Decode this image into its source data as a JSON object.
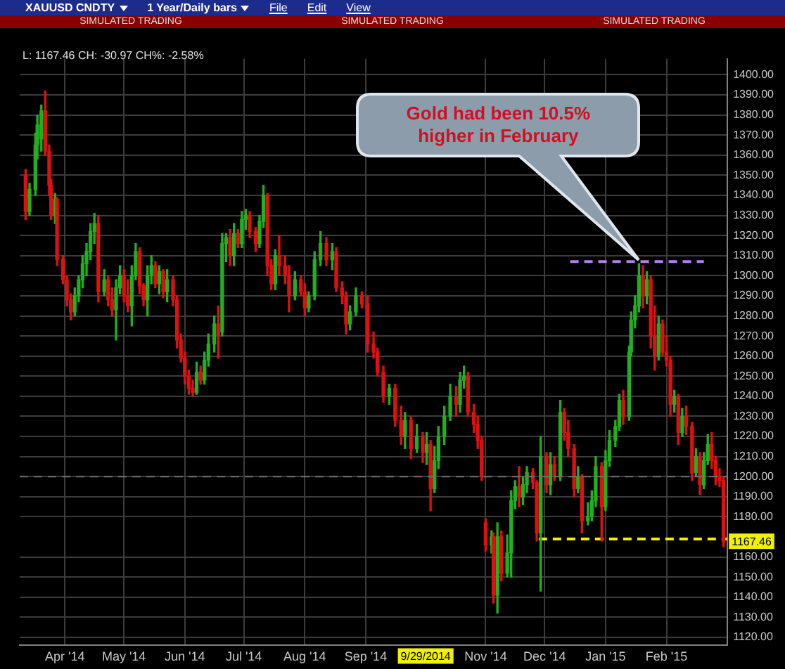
{
  "chart_data": {
    "type": "candlestick",
    "title": "XAUUSD CNDTY",
    "subtitle": "1 Year/Daily bars",
    "annotations": [
      "File",
      "Edit",
      "View",
      "SIMULATED TRADING",
      "SIMULATED TRADING",
      "SIMULATED TRADING",
      "L: 1167.46 CH: -30.97 CH%: -2.58%",
      "9/29/2014",
      "1167.46",
      "Gold had been 10.5% higher in February"
    ],
    "x": [
      "2014-03-12",
      "2014-03-14",
      "2014-03-17",
      "2014-03-18",
      "2014-03-20",
      "2014-03-22",
      "2014-03-24",
      "2014-03-25",
      "2014-03-27",
      "2014-03-28",
      "2014-03-31",
      "2014-04-02",
      "2014-04-04",
      "2014-04-06",
      "2014-04-08",
      "2014-04-10",
      "2014-04-12",
      "2014-04-14",
      "2014-04-16",
      "2014-04-18",
      "2014-04-21",
      "2014-04-23",
      "2014-04-25",
      "2014-04-27",
      "2014-04-29",
      "2014-05-01",
      "2014-05-03",
      "2014-05-05",
      "2014-05-07",
      "2014-05-09",
      "2014-05-11",
      "2014-05-13",
      "2014-05-15",
      "2014-05-17",
      "2014-05-19",
      "2014-05-21",
      "2014-05-23",
      "2014-05-26",
      "2014-05-28",
      "2014-05-30",
      "2014-06-01",
      "2014-06-03",
      "2014-06-05",
      "2014-06-07",
      "2014-06-09",
      "2014-06-11",
      "2014-06-13",
      "2014-06-16",
      "2014-06-18",
      "2014-06-20",
      "2014-06-22",
      "2014-06-24",
      "2014-06-26",
      "2014-06-28",
      "2014-06-30",
      "2014-07-02",
      "2014-07-04",
      "2014-07-07",
      "2014-07-09",
      "2014-07-11",
      "2014-07-13",
      "2014-07-15",
      "2014-07-17",
      "2014-07-19",
      "2014-07-22",
      "2014-07-24",
      "2014-07-27",
      "2014-07-30",
      "2014-08-01",
      "2014-08-03",
      "2014-08-06",
      "2014-08-09",
      "2014-08-12",
      "2014-08-15",
      "2014-08-17",
      "2014-08-20",
      "2014-08-22",
      "2014-08-24",
      "2014-08-27",
      "2014-08-30",
      "2014-09-02",
      "2014-09-05",
      "2014-09-07",
      "2014-09-10",
      "2014-09-13",
      "2014-09-16",
      "2014-09-19",
      "2014-09-21",
      "2014-09-24",
      "2014-09-27",
      "2014-09-30",
      "2014-10-02",
      "2014-10-04",
      "2014-10-06",
      "2014-10-08",
      "2014-10-11",
      "2014-10-14",
      "2014-10-17",
      "2014-10-19",
      "2014-10-21",
      "2014-10-23",
      "2014-10-26",
      "2014-10-28",
      "2014-10-30",
      "2014-11-01",
      "2014-11-04",
      "2014-11-05",
      "2014-11-07",
      "2014-11-09",
      "2014-11-12",
      "2014-11-14",
      "2014-11-16",
      "2014-11-18",
      "2014-11-20",
      "2014-11-22",
      "2014-11-25",
      "2014-11-27",
      "2014-11-29",
      "2014-12-02",
      "2014-12-04",
      "2014-12-06",
      "2014-12-09",
      "2014-12-11",
      "2014-12-13",
      "2014-12-16",
      "2014-12-18",
      "2014-12-20",
      "2014-12-23",
      "2014-12-25",
      "2014-12-27",
      "2014-12-30",
      "2015-01-01",
      "2015-01-03",
      "2015-01-06",
      "2015-01-08",
      "2015-01-10",
      "2015-01-13",
      "2015-01-14",
      "2015-01-16",
      "2015-01-18",
      "2015-01-20",
      "2015-01-22",
      "2015-01-24",
      "2015-01-26",
      "2015-01-28",
      "2015-01-30",
      "2015-02-01",
      "2015-02-03",
      "2015-02-05",
      "2015-02-07",
      "2015-02-09",
      "2015-02-11",
      "2015-02-14",
      "2015-02-16",
      "2015-02-18",
      "2015-02-20",
      "2015-02-22",
      "2015-02-24",
      "2015-02-26",
      "2015-02-28",
      "2015-03-02"
    ],
    "ohlc": [
      [
        1350,
        1353,
        1328,
        1332
      ],
      [
        1332,
        1346,
        1330,
        1343
      ],
      [
        1343,
        1371,
        1340,
        1365
      ],
      [
        1365,
        1380,
        1358,
        1375
      ],
      [
        1368,
        1385,
        1362,
        1382
      ],
      [
        1382,
        1392,
        1360,
        1362
      ],
      [
        1362,
        1365,
        1340,
        1345
      ],
      [
        1345,
        1348,
        1328,
        1330
      ],
      [
        1330,
        1341,
        1326,
        1338
      ],
      [
        1338,
        1339,
        1305,
        1308
      ],
      [
        1308,
        1310,
        1296,
        1298
      ],
      [
        1298,
        1300,
        1285,
        1288
      ],
      [
        1288,
        1291,
        1278,
        1282
      ],
      [
        1282,
        1294,
        1280,
        1290
      ],
      [
        1290,
        1300,
        1287,
        1298
      ],
      [
        1298,
        1310,
        1294,
        1306
      ],
      [
        1306,
        1316,
        1300,
        1312
      ],
      [
        1312,
        1326,
        1308,
        1322
      ],
      [
        1322,
        1331,
        1316,
        1326
      ],
      [
        1326,
        1330,
        1287,
        1292
      ],
      [
        1292,
        1303,
        1290,
        1298
      ],
      [
        1298,
        1300,
        1285,
        1288
      ],
      [
        1288,
        1294,
        1280,
        1283
      ],
      [
        1283,
        1298,
        1268,
        1294
      ],
      [
        1294,
        1305,
        1291,
        1300
      ],
      [
        1300,
        1303,
        1287,
        1290
      ],
      [
        1290,
        1298,
        1282,
        1285
      ],
      [
        1285,
        1305,
        1275,
        1300
      ],
      [
        1300,
        1316,
        1298,
        1312
      ],
      [
        1312,
        1314,
        1291,
        1295
      ],
      [
        1295,
        1296,
        1285,
        1288
      ],
      [
        1288,
        1305,
        1280,
        1300
      ],
      [
        1300,
        1310,
        1296,
        1305
      ],
      [
        1305,
        1307,
        1294,
        1296
      ],
      [
        1296,
        1305,
        1291,
        1302
      ],
      [
        1302,
        1303,
        1289,
        1292
      ],
      [
        1292,
        1303,
        1287,
        1298
      ],
      [
        1298,
        1300,
        1285,
        1288
      ],
      [
        1288,
        1290,
        1264,
        1268
      ],
      [
        1268,
        1271,
        1257,
        1259
      ],
      [
        1259,
        1262,
        1246,
        1250
      ],
      [
        1250,
        1253,
        1241,
        1244
      ],
      [
        1244,
        1248,
        1240,
        1242
      ],
      [
        1242,
        1257,
        1241,
        1252
      ],
      [
        1252,
        1255,
        1246,
        1248
      ],
      [
        1248,
        1262,
        1246,
        1258
      ],
      [
        1258,
        1271,
        1255,
        1266
      ],
      [
        1266,
        1280,
        1262,
        1276
      ],
      [
        1276,
        1285,
        1259,
        1270
      ],
      [
        1272,
        1321,
        1270,
        1316
      ],
      [
        1316,
        1321,
        1307,
        1319
      ],
      [
        1319,
        1323,
        1305,
        1310
      ],
      [
        1310,
        1326,
        1305,
        1321
      ],
      [
        1321,
        1323,
        1314,
        1316
      ],
      [
        1316,
        1332,
        1314,
        1328
      ],
      [
        1328,
        1333,
        1323,
        1330
      ],
      [
        1330,
        1332,
        1319,
        1322
      ],
      [
        1322,
        1324,
        1312,
        1316
      ],
      [
        1316,
        1330,
        1314,
        1327
      ],
      [
        1327,
        1345,
        1324,
        1340
      ],
      [
        1340,
        1341,
        1300,
        1305
      ],
      [
        1305,
        1308,
        1293,
        1296
      ],
      [
        1296,
        1313,
        1293,
        1310
      ],
      [
        1310,
        1320,
        1300,
        1305
      ],
      [
        1305,
        1310,
        1296,
        1300
      ],
      [
        1300,
        1305,
        1282,
        1290
      ],
      [
        1290,
        1302,
        1288,
        1298
      ],
      [
        1298,
        1300,
        1290,
        1292
      ],
      [
        1292,
        1296,
        1280,
        1284
      ],
      [
        1284,
        1292,
        1282,
        1290
      ],
      [
        1290,
        1312,
        1288,
        1308
      ],
      [
        1308,
        1322,
        1305,
        1316
      ],
      [
        1316,
        1319,
        1305,
        1308
      ],
      [
        1308,
        1316,
        1303,
        1312
      ],
      [
        1312,
        1314,
        1292,
        1294
      ],
      [
        1294,
        1297,
        1286,
        1290
      ],
      [
        1290,
        1292,
        1271,
        1276
      ],
      [
        1276,
        1285,
        1273,
        1282
      ],
      [
        1282,
        1294,
        1280,
        1290
      ],
      [
        1290,
        1292,
        1284,
        1286
      ],
      [
        1286,
        1290,
        1262,
        1266
      ],
      [
        1266,
        1272,
        1259,
        1262
      ],
      [
        1262,
        1264,
        1250,
        1252
      ],
      [
        1252,
        1255,
        1237,
        1240
      ],
      [
        1240,
        1246,
        1236,
        1244
      ],
      [
        1244,
        1246,
        1225,
        1228
      ],
      [
        1228,
        1235,
        1216,
        1220
      ],
      [
        1220,
        1232,
        1214,
        1228
      ],
      [
        1228,
        1230,
        1209,
        1214
      ],
      [
        1214,
        1226,
        1212,
        1220
      ],
      [
        1220,
        1222,
        1207,
        1212
      ],
      [
        1212,
        1222,
        1206,
        1216
      ],
      [
        1216,
        1218,
        1183,
        1194
      ],
      [
        1194,
        1215,
        1192,
        1208
      ],
      [
        1208,
        1225,
        1204,
        1220
      ],
      [
        1220,
        1235,
        1216,
        1230
      ],
      [
        1230,
        1246,
        1228,
        1240
      ],
      [
        1240,
        1245,
        1230,
        1236
      ],
      [
        1236,
        1252,
        1232,
        1248
      ],
      [
        1248,
        1255,
        1244,
        1250
      ],
      [
        1250,
        1252,
        1230,
        1232
      ],
      [
        1232,
        1236,
        1222,
        1226
      ],
      [
        1226,
        1230,
        1214,
        1218
      ],
      [
        1218,
        1220,
        1198,
        1200
      ],
      [
        1177,
        1179,
        1163,
        1166
      ],
      [
        1166,
        1173,
        1162,
        1170
      ],
      [
        1170,
        1172,
        1137,
        1141
      ],
      [
        1141,
        1177,
        1132,
        1170
      ],
      [
        1170,
        1173,
        1148,
        1152
      ],
      [
        1152,
        1171,
        1150,
        1162
      ],
      [
        1162,
        1193,
        1150,
        1188
      ],
      [
        1188,
        1198,
        1184,
        1195
      ],
      [
        1195,
        1205,
        1185,
        1190
      ],
      [
        1190,
        1200,
        1186,
        1196
      ],
      [
        1196,
        1205,
        1192,
        1202
      ],
      [
        1202,
        1204,
        1194,
        1197
      ],
      [
        1197,
        1198,
        1168,
        1172
      ],
      [
        1172,
        1220,
        1143,
        1210
      ],
      [
        1210,
        1212,
        1192,
        1196
      ],
      [
        1196,
        1212,
        1191,
        1206
      ],
      [
        1206,
        1210,
        1198,
        1200
      ],
      [
        1200,
        1238,
        1198,
        1232
      ],
      [
        1232,
        1234,
        1218,
        1222
      ],
      [
        1222,
        1228,
        1210,
        1214
      ],
      [
        1214,
        1216,
        1190,
        1194
      ],
      [
        1194,
        1205,
        1192,
        1200
      ],
      [
        1200,
        1201,
        1172,
        1178
      ],
      [
        1178,
        1187,
        1176,
        1180
      ],
      [
        1180,
        1193,
        1178,
        1188
      ],
      [
        1188,
        1210,
        1185,
        1205
      ],
      [
        1205,
        1207,
        1168,
        1185
      ],
      [
        1185,
        1213,
        1183,
        1208
      ],
      [
        1208,
        1223,
        1205,
        1218
      ],
      [
        1218,
        1228,
        1215,
        1225
      ],
      [
        1225,
        1241,
        1223,
        1238
      ],
      [
        1238,
        1243,
        1226,
        1230
      ],
      [
        1230,
        1265,
        1228,
        1262
      ],
      [
        1262,
        1282,
        1260,
        1278
      ],
      [
        1278,
        1290,
        1274,
        1285
      ],
      [
        1285,
        1306,
        1282,
        1300
      ],
      [
        1300,
        1305,
        1284,
        1290
      ],
      [
        1290,
        1302,
        1286,
        1298
      ],
      [
        1298,
        1300,
        1264,
        1270
      ],
      [
        1270,
        1285,
        1253,
        1260
      ],
      [
        1260,
        1280,
        1258,
        1276
      ],
      [
        1276,
        1278,
        1260,
        1262
      ],
      [
        1262,
        1270,
        1255,
        1258
      ],
      [
        1258,
        1260,
        1230,
        1236
      ],
      [
        1236,
        1243,
        1232,
        1240
      ],
      [
        1240,
        1241,
        1216,
        1222
      ],
      [
        1222,
        1234,
        1220,
        1230
      ],
      [
        1230,
        1235,
        1221,
        1225
      ],
      [
        1225,
        1227,
        1198,
        1202
      ],
      [
        1202,
        1214,
        1200,
        1210
      ],
      [
        1210,
        1212,
        1191,
        1196
      ],
      [
        1196,
        1212,
        1194,
        1208
      ],
      [
        1208,
        1221,
        1206,
        1216
      ],
      [
        1216,
        1222,
        1204,
        1208
      ],
      [
        1208,
        1210,
        1196,
        1200
      ],
      [
        1200,
        1204,
        1195,
        1198
      ],
      [
        1198,
        1200,
        1165,
        1167.46
      ]
    ],
    "colors": [
      "#e01010",
      "#20b020",
      "#20b020",
      "#20b020",
      "#20b020",
      "#e01010",
      "#e01010",
      "#e01010",
      "#20b020",
      "#e01010",
      "#e01010",
      "#e01010",
      "#e01010",
      "#20b020",
      "#20b020",
      "#20b020",
      "#20b020",
      "#20b020",
      "#20b020",
      "#e01010",
      "#20b020",
      "#e01010",
      "#e01010",
      "#20b020",
      "#20b020",
      "#e01010",
      "#e01010",
      "#20b020",
      "#20b020",
      "#e01010",
      "#e01010",
      "#20b020",
      "#20b020",
      "#e01010",
      "#20b020",
      "#e01010",
      "#20b020",
      "#e01010",
      "#e01010",
      "#e01010",
      "#e01010",
      "#e01010",
      "#e01010",
      "#20b020",
      "#e01010",
      "#20b020",
      "#20b020",
      "#20b020",
      "#e01010",
      "#20b020",
      "#20b020",
      "#e01010",
      "#20b020",
      "#e01010",
      "#20b020",
      "#20b020",
      "#e01010",
      "#e01010",
      "#20b020",
      "#20b020",
      "#e01010",
      "#e01010",
      "#20b020",
      "#e01010",
      "#e01010",
      "#e01010",
      "#20b020",
      "#e01010",
      "#e01010",
      "#20b020",
      "#20b020",
      "#20b020",
      "#e01010",
      "#20b020",
      "#e01010",
      "#e01010",
      "#e01010",
      "#20b020",
      "#20b020",
      "#e01010",
      "#e01010",
      "#e01010",
      "#e01010",
      "#e01010",
      "#20b020",
      "#e01010",
      "#e01010",
      "#20b020",
      "#e01010",
      "#20b020",
      "#e01010",
      "#20b020",
      "#e01010",
      "#20b020",
      "#20b020",
      "#20b020",
      "#20b020",
      "#e01010",
      "#20b020",
      "#20b020",
      "#e01010",
      "#e01010",
      "#e01010",
      "#e01010",
      "#e01010",
      "#20b020",
      "#e01010",
      "#20b020",
      "#e01010",
      "#20b020",
      "#20b020",
      "#20b020",
      "#e01010",
      "#20b020",
      "#20b020",
      "#e01010",
      "#e01010",
      "#20b020",
      "#e01010",
      "#20b020",
      "#e01010",
      "#20b020",
      "#e01010",
      "#e01010",
      "#e01010",
      "#20b020",
      "#e01010",
      "#20b020",
      "#20b020",
      "#20b020",
      "#e01010",
      "#20b020",
      "#20b020",
      "#20b020",
      "#20b020",
      "#e01010",
      "#20b020",
      "#20b020",
      "#20b020",
      "#20b020",
      "#e01010",
      "#20b020",
      "#e01010",
      "#e01010",
      "#20b020",
      "#e01010",
      "#e01010",
      "#e01010",
      "#20b020",
      "#e01010",
      "#20b020",
      "#e01010",
      "#e01010",
      "#20b020",
      "#e01010",
      "#20b020",
      "#20b020",
      "#e01010",
      "#e01010",
      "#e01010",
      "#e01010"
    ],
    "series": [
      {
        "type": "line",
        "x": [
          "2014-12-14",
          "2015-02-20"
        ],
        "values": [
          1307,
          1307
        ],
        "color": "#b080e8",
        "line_style": "dashed"
      },
      {
        "type": "line",
        "x": [
          "2014-11-28",
          "2015-03-04"
        ],
        "values": [
          1169,
          1169
        ],
        "color": "#f0f000",
        "line_style": "dashed"
      }
    ],
    "ref_lines": [
      {
        "axis": "y",
        "value": 1200,
        "color": "#707070",
        "line_style": "dashed"
      }
    ],
    "xlim": [
      "2014-03-09",
      "2015-03-04"
    ],
    "xticks": [
      {
        "value": "2014-04-01",
        "label": "Apr '14"
      },
      {
        "value": "2014-05-01",
        "label": "May '14"
      },
      {
        "value": "2014-06-01",
        "label": "Jun '14"
      },
      {
        "value": "2014-07-01",
        "label": "Jul '14"
      },
      {
        "value": "2014-08-01",
        "label": "Aug '14"
      },
      {
        "value": "2014-09-01",
        "label": "Sep '14"
      },
      {
        "value": "2014-11-01",
        "label": "Nov '14"
      },
      {
        "value": "2014-12-01",
        "label": "Dec '14"
      },
      {
        "value": "2015-01-01",
        "label": "Jan '15"
      },
      {
        "value": "2015-02-01",
        "label": "Feb '15"
      }
    ],
    "ylim": [
      1116,
      1408
    ],
    "yticks": [
      {
        "value": 1120,
        "label": "1120.00"
      },
      {
        "value": 1130,
        "label": "1130.00"
      },
      {
        "value": 1140,
        "label": "1140.00"
      },
      {
        "value": 1150,
        "label": "1150.00"
      },
      {
        "value": 1160,
        "label": "1160.00"
      },
      {
        "value": 1180,
        "label": "1180.00"
      },
      {
        "value": 1190,
        "label": "1190.00"
      },
      {
        "value": 1200,
        "label": "1200.00"
      },
      {
        "value": 1210,
        "label": "1210.00"
      },
      {
        "value": 1220,
        "label": "1220.00"
      },
      {
        "value": 1230,
        "label": "1230.00"
      },
      {
        "value": 1240,
        "label": "1240.00"
      },
      {
        "value": 1250,
        "label": "1250.00"
      },
      {
        "value": 1260,
        "label": "1260.00"
      },
      {
        "value": 1270,
        "label": "1270.00"
      },
      {
        "value": 1280,
        "label": "1280.00"
      },
      {
        "value": 1290,
        "label": "1290.00"
      },
      {
        "value": 1300,
        "label": "1300.00"
      },
      {
        "value": 1310,
        "label": "1310.00"
      },
      {
        "value": 1320,
        "label": "1320.00"
      },
      {
        "value": 1330,
        "label": "1330.00"
      },
      {
        "value": 1340,
        "label": "1340.00"
      },
      {
        "value": 1350,
        "label": "1350.00"
      },
      {
        "value": 1360,
        "label": "1360.00"
      },
      {
        "value": 1370,
        "label": "1370.00"
      },
      {
        "value": 1380,
        "label": "1380.00"
      },
      {
        "value": 1390,
        "label": "1390.00"
      },
      {
        "value": 1400,
        "label": "1400.00"
      }
    ],
    "grid": true,
    "legend": false
  }
}
